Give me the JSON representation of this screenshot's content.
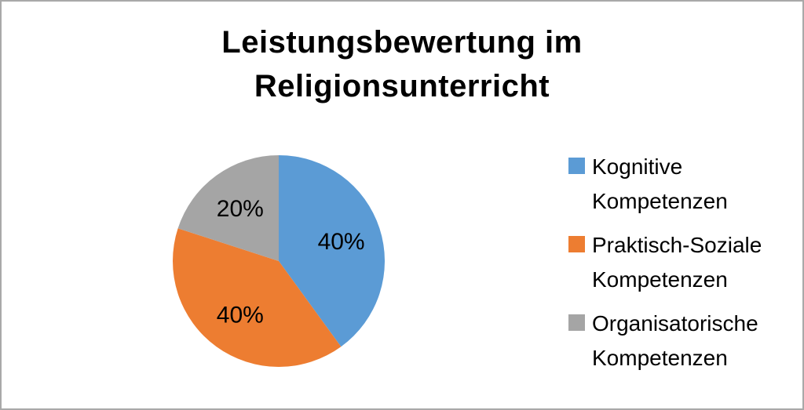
{
  "window": {
    "background": "#ffffff",
    "frame_border_color": "#a9a9a9"
  },
  "chart_data": {
    "type": "pie",
    "title": "Leistungsbewertung im Religionsunterricht",
    "slices": [
      {
        "label": "Kognitive Kompetenzen",
        "value": 40,
        "display": "40%",
        "color": "#5b9bd5"
      },
      {
        "label": "Praktisch-Soziale Kompetenzen",
        "value": 40,
        "display": "40%",
        "color": "#ed7d31"
      },
      {
        "label": "Organisatorische Kompetenzen",
        "value": 20,
        "display": "20%",
        "color": "#a5a5a5"
      }
    ],
    "start_angle_deg": 0,
    "direction": "clockwise",
    "data_labels": "percent-inside",
    "data_label_color": "#000000",
    "legend_position": "right",
    "grid": false
  },
  "legend": {
    "items": [
      {
        "label": "Kognitive Kompetenzen",
        "color": "#5b9bd5"
      },
      {
        "label": "Praktisch-Soziale Kompetenzen",
        "color": "#ed7d31"
      },
      {
        "label": "Organisatorische Kompetenzen",
        "color": "#a5a5a5"
      }
    ]
  }
}
